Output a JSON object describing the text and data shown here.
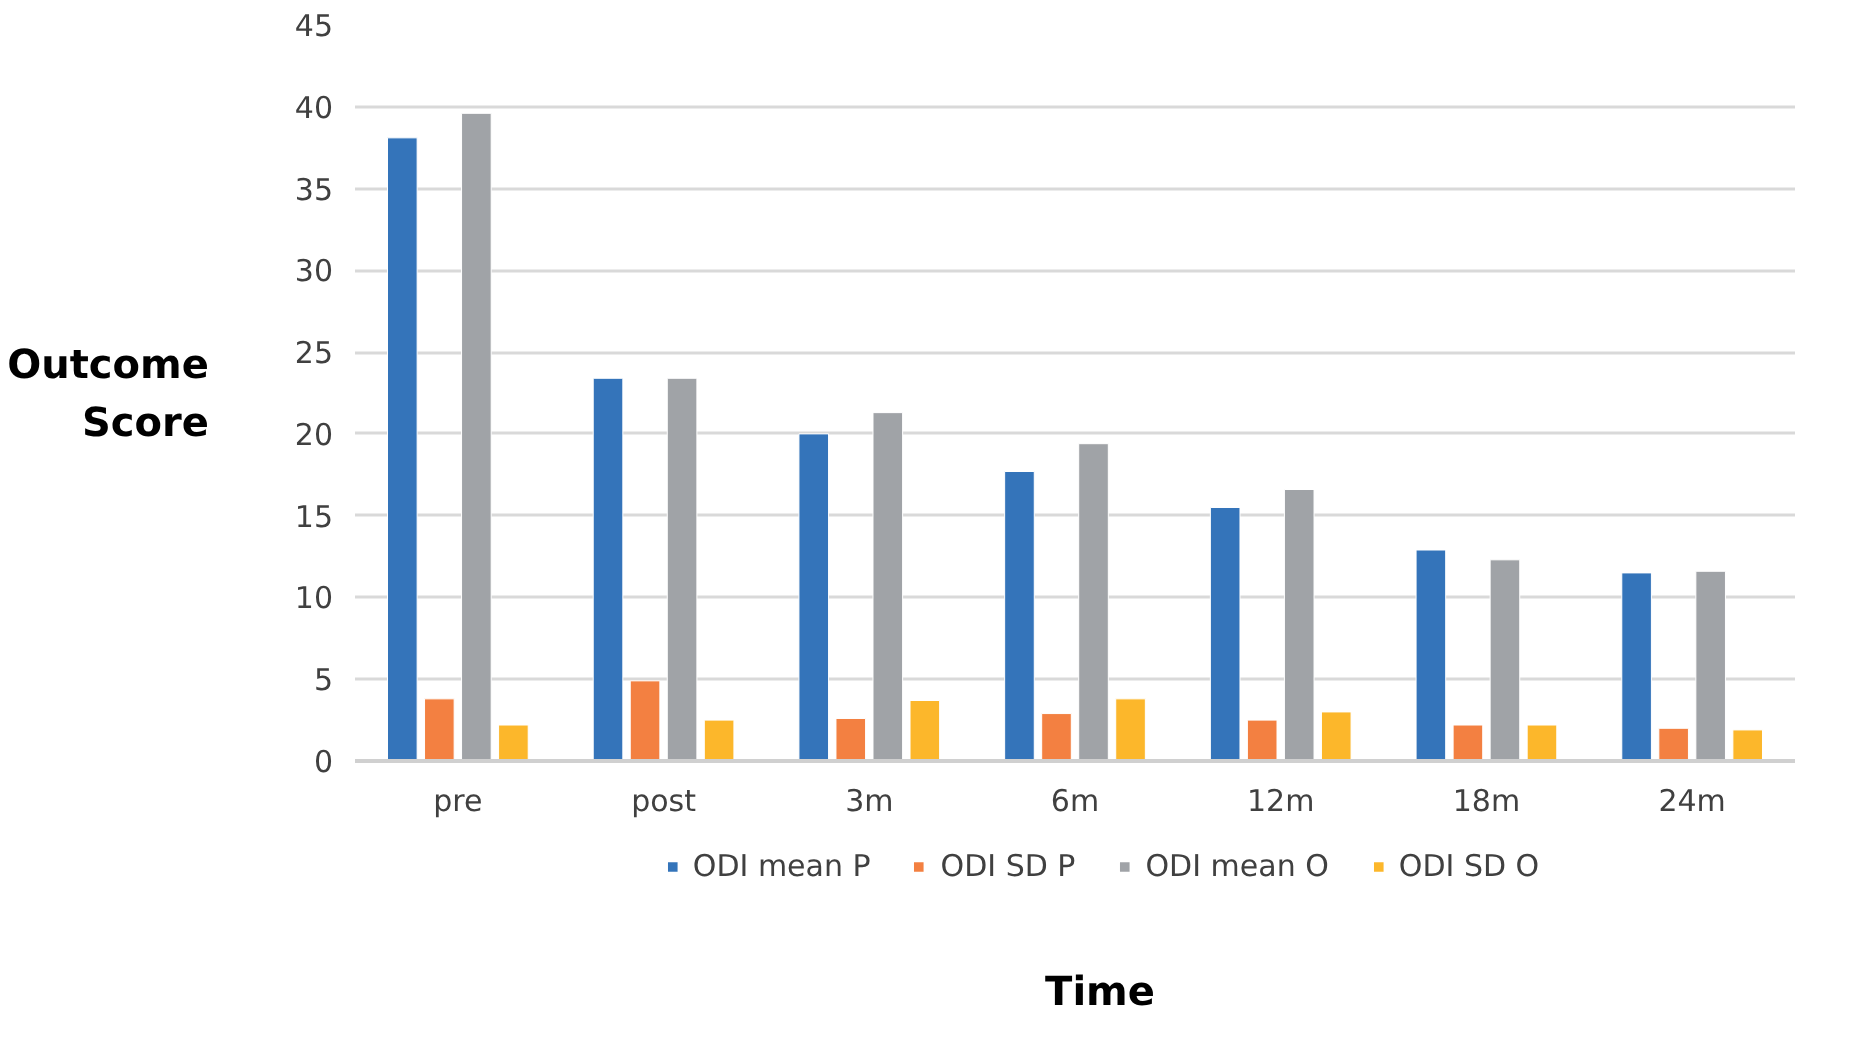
{
  "chart_data": {
    "type": "bar",
    "xlabel": "Time",
    "ylabel": "Outcome Score",
    "categories": [
      "pre",
      "post",
      "3m",
      "6m",
      "12m",
      "18m",
      "24m"
    ],
    "series": [
      {
        "name": "ODI mean P",
        "color": "#3474ba",
        "values": [
          38.1,
          23.4,
          20.0,
          17.7,
          15.5,
          12.9,
          11.5
        ]
      },
      {
        "name": "ODI SD P",
        "color": "#f38041",
        "values": [
          3.8,
          4.9,
          2.6,
          2.9,
          2.5,
          2.2,
          2.0
        ]
      },
      {
        "name": "ODI mean O",
        "color": "#a0a3a7",
        "values": [
          39.6,
          23.4,
          21.3,
          19.4,
          16.6,
          12.3,
          11.6
        ]
      },
      {
        "name": "ODI SD O",
        "color": "#fcb72b",
        "values": [
          2.2,
          2.5,
          3.7,
          3.8,
          3.0,
          2.2,
          1.9
        ]
      }
    ],
    "ylim": [
      0,
      45
    ],
    "yticks": [
      0,
      5,
      10,
      15,
      20,
      25,
      30,
      35,
      40,
      45
    ],
    "grid": "y",
    "legend": "bottom"
  }
}
